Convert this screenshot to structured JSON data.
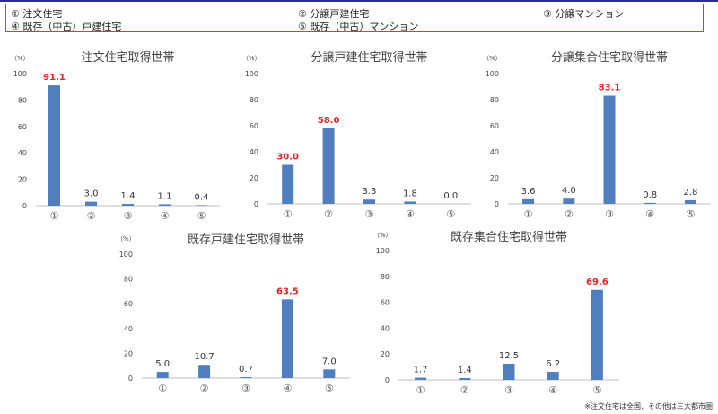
{
  "legend": [
    "① 注文住宅",
    "② 分譲戸建住宅",
    "③ 分譲マンション",
    "④ 既存（中古）戸建住宅",
    "⑤ 既存（中古）マンション"
  ],
  "note": "※注文住宅は全国、その他は三大都市圏",
  "colors": {
    "bar": "#4f7fbf",
    "highlight_label": "#e8222a",
    "axis": "#bfbfbf"
  },
  "chart_data": [
    {
      "type": "bar",
      "title": "注文住宅取得世帯",
      "unit": "（%）",
      "categories": [
        "①",
        "②",
        "③",
        "④",
        "⑤"
      ],
      "values": [
        91.1,
        3.0,
        1.4,
        1.1,
        0.4
      ],
      "ylim": [
        0,
        100
      ],
      "yticks": [
        0,
        20,
        40,
        60,
        80,
        100
      ],
      "highlight": 0
    },
    {
      "type": "bar",
      "title": "分譲戸建住宅取得世帯",
      "unit": "（%）",
      "categories": [
        "①",
        "②",
        "③",
        "④",
        "⑤"
      ],
      "values": [
        30.0,
        58.0,
        3.3,
        1.8,
        0.0
      ],
      "ylim": [
        0,
        100
      ],
      "yticks": [
        0,
        20,
        40,
        60,
        80,
        100
      ],
      "highlight": [
        0,
        1
      ]
    },
    {
      "type": "bar",
      "title": "分譲集合住宅取得世帯",
      "unit": "（%）",
      "categories": [
        "①",
        "②",
        "③",
        "④",
        "⑤"
      ],
      "values": [
        3.6,
        4.0,
        83.1,
        0.8,
        2.8
      ],
      "ylim": [
        0,
        100
      ],
      "yticks": [
        0,
        20,
        40,
        60,
        80,
        100
      ],
      "highlight": 2
    },
    {
      "type": "bar",
      "title": "既存戸建住宅取得世帯",
      "unit": "（%）",
      "categories": [
        "①",
        "②",
        "③",
        "④",
        "⑤"
      ],
      "values": [
        5.0,
        10.7,
        0.7,
        63.5,
        7.0
      ],
      "ylim": [
        0,
        100
      ],
      "yticks": [
        0,
        20,
        40,
        60,
        80,
        100
      ],
      "highlight": 3
    },
    {
      "type": "bar",
      "title": "既存集合住宅取得世帯",
      "unit": "（%）",
      "categories": [
        "①",
        "②",
        "③",
        "④",
        "⑤"
      ],
      "values": [
        1.7,
        1.4,
        12.5,
        6.2,
        69.6
      ],
      "ylim": [
        0,
        100
      ],
      "yticks": [
        0,
        20,
        40,
        60,
        80,
        100
      ],
      "highlight": 4
    }
  ]
}
